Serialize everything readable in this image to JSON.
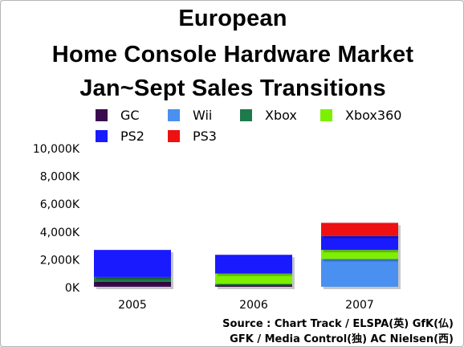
{
  "title_lines": [
    "European",
    "Home Console Hardware Market",
    "Jan~Sept Sales Transitions"
  ],
  "source_lines": [
    "Source : Chart Track / ELSPA(英) GfK(仏)",
    "GFK / Media Control(独) AC Nielsen(西)"
  ],
  "chart_data": {
    "type": "bar",
    "stacked": true,
    "categories": [
      "2005",
      "2006",
      "2007"
    ],
    "ylim": [
      0,
      10000
    ],
    "yticks": [
      "0K",
      "2,000K",
      "4,000K",
      "6,000K",
      "8,000K",
      "10,000K"
    ],
    "ytick_values": [
      0,
      2000,
      4000,
      6000,
      8000,
      10000
    ],
    "grid": false,
    "legend_position": "top",
    "series": [
      {
        "name": "GC",
        "color": "#3b0b4f",
        "values": [
          350,
          100,
          0
        ]
      },
      {
        "name": "Wii",
        "color": "#4a90f0",
        "values": [
          0,
          0,
          2000
        ]
      },
      {
        "name": "Xbox",
        "color": "#1e7a4a",
        "values": [
          350,
          100,
          0
        ]
      },
      {
        "name": "Xbox360",
        "color": "#7cf000",
        "values": [
          0,
          750,
          650
        ]
      },
      {
        "name": "PS2",
        "color": "#1a1aff",
        "values": [
          1950,
          1350,
          1000
        ]
      },
      {
        "name": "PS3",
        "color": "#ee1111",
        "values": [
          0,
          0,
          950
        ]
      }
    ]
  }
}
